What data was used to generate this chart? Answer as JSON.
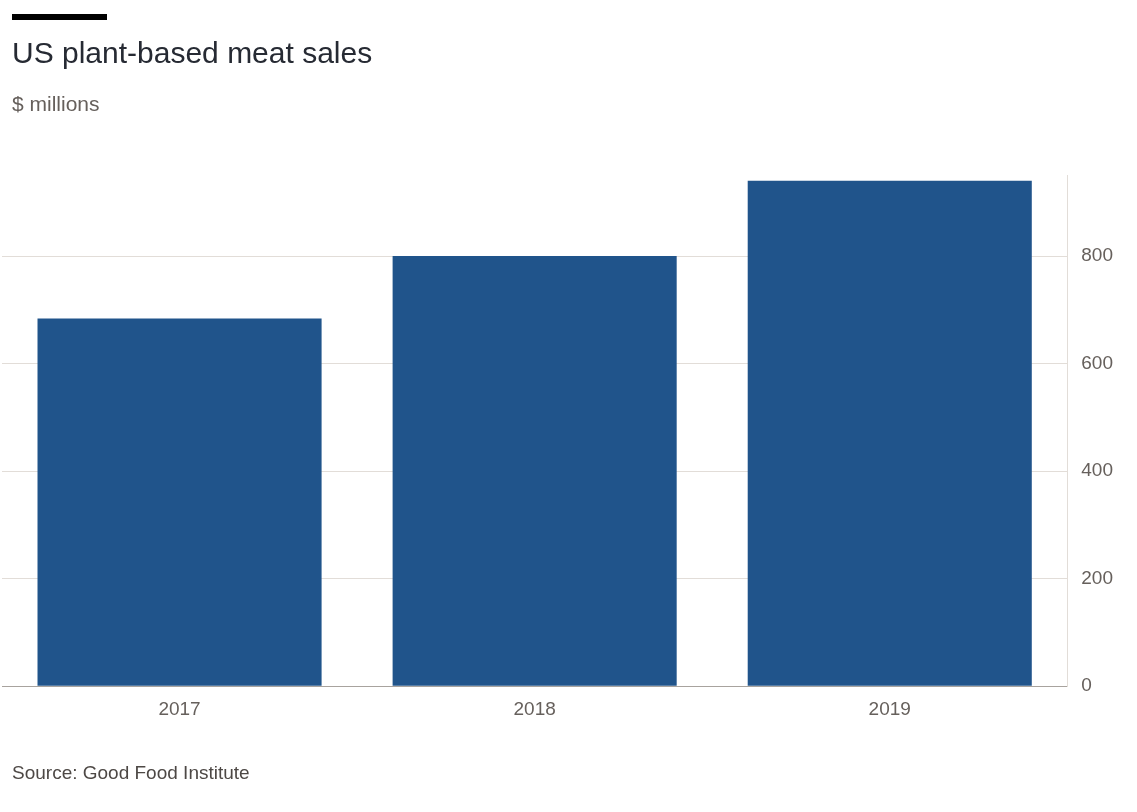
{
  "chart_data": {
    "type": "bar",
    "title": "US plant-based meat sales",
    "subtitle": "$ millions",
    "categories": [
      "2017",
      "2018",
      "2019"
    ],
    "values": [
      684,
      800,
      940
    ],
    "color": "#20548b",
    "ylim": [
      0,
      950
    ],
    "yticks": [
      0,
      200,
      400,
      600,
      800
    ],
    "grid": "y",
    "legend": false,
    "annotations": [
      "Source: Good Food Institute"
    ]
  }
}
